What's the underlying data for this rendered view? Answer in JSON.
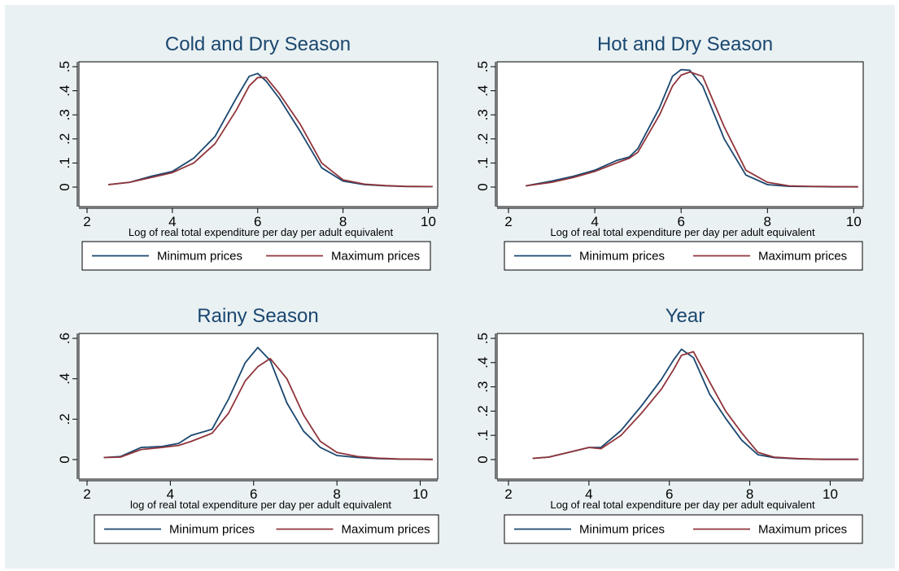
{
  "colors": {
    "background": "#eaf1f3",
    "panel": "#ffffff",
    "title": "#1a476f",
    "series_min": "#1a476f",
    "series_max": "#90353b"
  },
  "chart_data": [
    {
      "type": "line",
      "title": "Cold and Dry Season",
      "xlabel": "Log of real total expenditure per day per adult equivalent",
      "ylabel": "",
      "xlim": [
        2,
        10.2
      ],
      "ylim": [
        0,
        0.5
      ],
      "xticks": [
        "2",
        "4",
        "6",
        "8",
        "10"
      ],
      "yticks": [
        "0",
        ".1",
        ".2",
        ".3",
        ".4",
        ".5"
      ],
      "grid": false,
      "legend": "bottom",
      "series": [
        {
          "name": "Minimum prices",
          "color": "#1a476f",
          "x": [
            2.5,
            3.0,
            3.5,
            4.0,
            4.5,
            5.0,
            5.5,
            5.8,
            6.0,
            6.2,
            6.5,
            7.0,
            7.5,
            8.0,
            8.5,
            9.0,
            9.5,
            10.1
          ],
          "y": [
            0.01,
            0.02,
            0.045,
            0.065,
            0.12,
            0.21,
            0.37,
            0.46,
            0.472,
            0.44,
            0.37,
            0.23,
            0.08,
            0.025,
            0.01,
            0.005,
            0.002,
            0.002
          ]
        },
        {
          "name": "Maximum prices",
          "color": "#90353b",
          "x": [
            2.5,
            3.0,
            3.5,
            4.0,
            4.5,
            5.0,
            5.5,
            5.8,
            6.0,
            6.2,
            6.5,
            7.0,
            7.5,
            8.0,
            8.5,
            9.0,
            9.5,
            10.1
          ],
          "y": [
            0.01,
            0.02,
            0.04,
            0.06,
            0.1,
            0.18,
            0.32,
            0.42,
            0.455,
            0.455,
            0.39,
            0.26,
            0.1,
            0.03,
            0.012,
            0.006,
            0.003,
            0.002
          ]
        }
      ]
    },
    {
      "type": "line",
      "title": "Hot and Dry Season",
      "xlabel": "Log of real total expenditure per day per adult equivalent",
      "ylabel": "",
      "xlim": [
        2,
        10.2
      ],
      "ylim": [
        0,
        0.5
      ],
      "xticks": [
        "2",
        "4",
        "6",
        "8",
        "10"
      ],
      "yticks": [
        "0",
        ".1",
        ".2",
        ".3",
        ".4",
        ".5"
      ],
      "grid": false,
      "legend": "bottom",
      "series": [
        {
          "name": "Minimum prices",
          "color": "#1a476f",
          "x": [
            2.4,
            3.0,
            3.5,
            4.0,
            4.5,
            4.8,
            5.0,
            5.5,
            5.8,
            6.0,
            6.2,
            6.5,
            7.0,
            7.5,
            8.0,
            8.5,
            9.0,
            9.5,
            10.1
          ],
          "y": [
            0.005,
            0.025,
            0.045,
            0.07,
            0.11,
            0.125,
            0.16,
            0.33,
            0.46,
            0.488,
            0.485,
            0.42,
            0.2,
            0.05,
            0.01,
            0.003,
            0.002,
            0.001,
            0.001
          ]
        },
        {
          "name": "Maximum prices",
          "color": "#90353b",
          "x": [
            2.4,
            3.0,
            3.5,
            4.0,
            4.5,
            4.8,
            5.0,
            5.5,
            5.8,
            6.0,
            6.2,
            6.5,
            7.0,
            7.5,
            8.0,
            8.5,
            9.0,
            9.5,
            10.1
          ],
          "y": [
            0.005,
            0.02,
            0.04,
            0.065,
            0.1,
            0.12,
            0.145,
            0.3,
            0.42,
            0.465,
            0.478,
            0.46,
            0.25,
            0.07,
            0.02,
            0.005,
            0.003,
            0.002,
            0.001
          ]
        }
      ]
    },
    {
      "type": "line",
      "title": "Rainy Season",
      "xlabel": "log of real total expenditure per day per adult equivalent",
      "ylabel": "",
      "xlim": [
        2,
        10.4
      ],
      "ylim": [
        0,
        0.6
      ],
      "xticks": [
        "2",
        "4",
        "6",
        "8",
        "10"
      ],
      "yticks": [
        "0",
        ".2",
        ".4",
        ".6"
      ],
      "grid": false,
      "legend": "bottom",
      "series": [
        {
          "name": "Minimum prices",
          "color": "#1a476f",
          "x": [
            2.4,
            2.8,
            3.3,
            3.8,
            4.2,
            4.5,
            5.0,
            5.4,
            5.8,
            6.1,
            6.4,
            6.8,
            7.2,
            7.6,
            8.0,
            8.5,
            9.0,
            9.5,
            10.3
          ],
          "y": [
            0.01,
            0.015,
            0.06,
            0.065,
            0.08,
            0.12,
            0.15,
            0.3,
            0.48,
            0.555,
            0.49,
            0.28,
            0.14,
            0.06,
            0.02,
            0.01,
            0.005,
            0.002,
            0.001
          ]
        },
        {
          "name": "Maximum prices",
          "color": "#90353b",
          "x": [
            2.4,
            2.8,
            3.3,
            3.8,
            4.2,
            4.5,
            5.0,
            5.4,
            5.8,
            6.1,
            6.4,
            6.8,
            7.2,
            7.6,
            8.0,
            8.5,
            9.0,
            9.5,
            10.3
          ],
          "y": [
            0.01,
            0.012,
            0.05,
            0.06,
            0.07,
            0.09,
            0.13,
            0.23,
            0.39,
            0.46,
            0.5,
            0.4,
            0.22,
            0.09,
            0.035,
            0.015,
            0.007,
            0.003,
            0.001
          ]
        }
      ]
    },
    {
      "type": "line",
      "title": "Year",
      "xlabel": "Log of real total expenditure per day per adult equivalent",
      "ylabel": "",
      "xlim": [
        2,
        10.8
      ],
      "ylim": [
        0,
        0.5
      ],
      "xticks": [
        "2",
        "4",
        "6",
        "8",
        "10"
      ],
      "yticks": [
        "0",
        ".1",
        ".2",
        ".3",
        ".4",
        ".5"
      ],
      "grid": false,
      "legend": "bottom",
      "series": [
        {
          "name": "Minimum prices",
          "color": "#1a476f",
          "x": [
            2.6,
            3.0,
            3.5,
            4.0,
            4.3,
            4.8,
            5.3,
            5.8,
            6.1,
            6.3,
            6.6,
            7.0,
            7.4,
            7.8,
            8.2,
            8.6,
            9.2,
            9.8,
            10.7
          ],
          "y": [
            0.005,
            0.01,
            0.03,
            0.05,
            0.05,
            0.12,
            0.22,
            0.33,
            0.41,
            0.455,
            0.42,
            0.27,
            0.17,
            0.08,
            0.02,
            0.008,
            0.003,
            0.001,
            0.001
          ]
        },
        {
          "name": "Maximum prices",
          "color": "#90353b",
          "x": [
            2.6,
            3.0,
            3.5,
            4.0,
            4.3,
            4.8,
            5.3,
            5.8,
            6.1,
            6.3,
            6.6,
            7.0,
            7.4,
            7.8,
            8.2,
            8.6,
            9.2,
            9.8,
            10.7
          ],
          "y": [
            0.005,
            0.01,
            0.03,
            0.05,
            0.045,
            0.1,
            0.19,
            0.29,
            0.37,
            0.43,
            0.445,
            0.32,
            0.2,
            0.11,
            0.03,
            0.01,
            0.004,
            0.001,
            0.001
          ]
        }
      ]
    }
  ]
}
